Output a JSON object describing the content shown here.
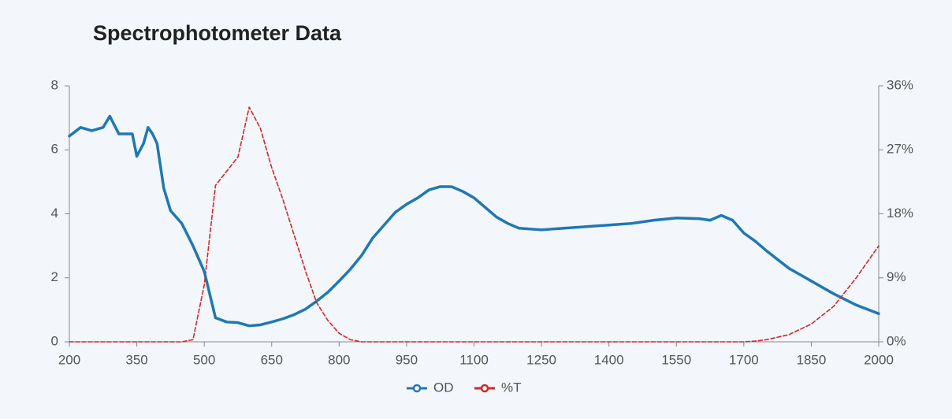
{
  "chart_data": {
    "type": "line",
    "title": "Spectrophotometer Data",
    "x": [
      200,
      225,
      250,
      275,
      290,
      310,
      340,
      350,
      365,
      375,
      385,
      395,
      410,
      425,
      450,
      475,
      500,
      525,
      550,
      575,
      600,
      625,
      650,
      675,
      700,
      725,
      750,
      775,
      800,
      825,
      850,
      875,
      900,
      925,
      950,
      975,
      1000,
      1025,
      1050,
      1075,
      1100,
      1125,
      1150,
      1175,
      1200,
      1250,
      1300,
      1350,
      1400,
      1450,
      1500,
      1550,
      1600,
      1625,
      1650,
      1675,
      1700,
      1725,
      1750,
      1800,
      1850,
      1900,
      1950,
      2000
    ],
    "series": [
      {
        "name": "OD",
        "color": "#1f78b4",
        "line_style": "solid",
        "axis": "y",
        "values": [
          6.43,
          6.7,
          6.6,
          6.7,
          7.05,
          6.5,
          6.5,
          5.8,
          6.2,
          6.7,
          6.5,
          6.2,
          4.8,
          4.1,
          3.7,
          3.0,
          2.2,
          0.75,
          0.62,
          0.6,
          0.5,
          0.53,
          0.62,
          0.72,
          0.85,
          1.02,
          1.27,
          1.55,
          1.9,
          2.27,
          2.7,
          3.25,
          3.65,
          4.05,
          4.3,
          4.5,
          4.75,
          4.85,
          4.85,
          4.7,
          4.5,
          4.2,
          3.9,
          3.7,
          3.55,
          3.5,
          3.55,
          3.6,
          3.65,
          3.7,
          3.8,
          3.87,
          3.85,
          3.8,
          3.95,
          3.8,
          3.4,
          3.15,
          2.85,
          2.3,
          1.9,
          1.5,
          1.15,
          0.88
        ]
      },
      {
        "name": "%T",
        "color": "#d62728",
        "line_style": "dashed",
        "axis": "y2",
        "values": [
          0,
          0,
          0,
          0,
          0,
          0,
          0,
          0,
          0,
          0,
          0,
          0,
          0,
          0,
          0,
          0.3,
          8,
          22,
          24,
          26,
          33,
          30,
          24.5,
          20,
          15,
          10,
          5.5,
          3,
          1.2,
          0.3,
          0,
          0,
          0,
          0,
          0,
          0,
          0,
          0,
          0,
          0,
          0,
          0,
          0,
          0,
          0,
          0,
          0,
          0,
          0,
          0,
          0,
          0,
          0,
          0,
          0,
          0,
          0,
          0.1,
          0.3,
          1,
          2.5,
          5,
          9,
          13.5
        ]
      }
    ],
    "xlim": [
      200,
      2000
    ],
    "xticks": [
      200,
      350,
      500,
      650,
      800,
      950,
      1100,
      1250,
      1400,
      1550,
      1700,
      1850,
      2000
    ],
    "ylim": [
      0,
      8
    ],
    "yticks": [
      0,
      2,
      4,
      6,
      8
    ],
    "y2lim": [
      0,
      36
    ],
    "y2ticks": [
      {
        "value": 0,
        "label": "0%"
      },
      {
        "value": 9,
        "label": "9%"
      },
      {
        "value": 18,
        "label": "18%"
      },
      {
        "value": 27,
        "label": "27%"
      },
      {
        "value": 36,
        "label": "36%"
      }
    ],
    "grid": false,
    "legend_position": "bottom"
  }
}
